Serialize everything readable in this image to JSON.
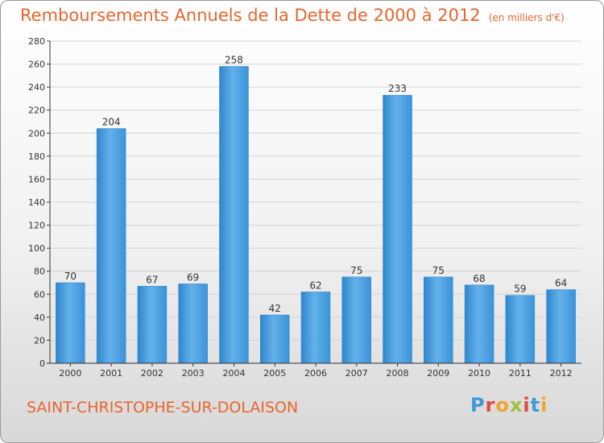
{
  "title": "Remboursements Annuels de la Dette de 2000 à 2012",
  "unit": "(en milliers d'€)",
  "commune": "SAINT-CHRISTOPHE-SUR-DOLAISON",
  "logo": [
    "P",
    "r",
    "o",
    "x",
    "i",
    "t",
    "i"
  ],
  "colors": {
    "bar": "#3d95d6",
    "bar_light": "#63b1ea",
    "title": "#e8652d",
    "grid": "#d4d4d4"
  },
  "chart_data": {
    "type": "bar",
    "title": "Remboursements Annuels de la Dette de 2000 à 2012",
    "categories": [
      "2000",
      "2001",
      "2002",
      "2003",
      "2004",
      "2005",
      "2006",
      "2007",
      "2008",
      "2009",
      "2010",
      "2011",
      "2012"
    ],
    "values": [
      70,
      204,
      67,
      69,
      258,
      42,
      62,
      75,
      233,
      75,
      68,
      59,
      64
    ],
    "ylim": [
      0,
      280
    ],
    "yticks": [
      0,
      20,
      40,
      60,
      80,
      100,
      120,
      140,
      160,
      180,
      200,
      220,
      240,
      260,
      280
    ],
    "grid": true,
    "data_labels": true
  }
}
